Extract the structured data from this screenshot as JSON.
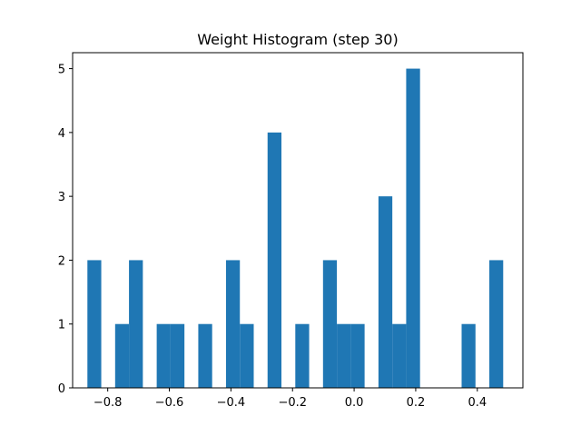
{
  "chart_data": {
    "type": "bar",
    "title": "Weight Histogram (step 30)",
    "xlabel": "",
    "ylabel": "",
    "xlim": [
      -0.914,
      0.548
    ],
    "ylim": [
      0,
      5.25
    ],
    "bar_color": "#1f77b4",
    "bin_width": 0.045,
    "bins": [
      {
        "left": -0.866,
        "count": 2
      },
      {
        "left": -0.821,
        "count": 0
      },
      {
        "left": -0.776,
        "count": 1
      },
      {
        "left": -0.731,
        "count": 2
      },
      {
        "left": -0.686,
        "count": 0
      },
      {
        "left": -0.641,
        "count": 1
      },
      {
        "left": -0.596,
        "count": 1
      },
      {
        "left": -0.551,
        "count": 0
      },
      {
        "left": -0.506,
        "count": 1
      },
      {
        "left": -0.461,
        "count": 0
      },
      {
        "left": -0.416,
        "count": 2
      },
      {
        "left": -0.371,
        "count": 1
      },
      {
        "left": -0.326,
        "count": 0
      },
      {
        "left": -0.281,
        "count": 4
      },
      {
        "left": -0.236,
        "count": 0
      },
      {
        "left": -0.191,
        "count": 1
      },
      {
        "left": -0.146,
        "count": 0
      },
      {
        "left": -0.101,
        "count": 2
      },
      {
        "left": -0.056,
        "count": 1
      },
      {
        "left": -0.011,
        "count": 1
      },
      {
        "left": 0.034,
        "count": 0
      },
      {
        "left": 0.079,
        "count": 3
      },
      {
        "left": 0.124,
        "count": 1
      },
      {
        "left": 0.169,
        "count": 5
      },
      {
        "left": 0.214,
        "count": 0
      },
      {
        "left": 0.259,
        "count": 0
      },
      {
        "left": 0.304,
        "count": 0
      },
      {
        "left": 0.349,
        "count": 1
      },
      {
        "left": 0.394,
        "count": 0
      },
      {
        "left": 0.439,
        "count": 2
      }
    ],
    "x_ticks": [
      {
        "value": -0.8,
        "label": "−0.8"
      },
      {
        "value": -0.6,
        "label": "−0.6"
      },
      {
        "value": -0.4,
        "label": "−0.4"
      },
      {
        "value": -0.2,
        "label": "−0.2"
      },
      {
        "value": 0.0,
        "label": "0.0"
      },
      {
        "value": 0.2,
        "label": "0.2"
      },
      {
        "value": 0.4,
        "label": "0.4"
      }
    ],
    "y_ticks": [
      {
        "value": 0,
        "label": "0"
      },
      {
        "value": 1,
        "label": "1"
      },
      {
        "value": 2,
        "label": "2"
      },
      {
        "value": 3,
        "label": "3"
      },
      {
        "value": 4,
        "label": "4"
      },
      {
        "value": 5,
        "label": "5"
      }
    ],
    "grid": false,
    "legend": "none"
  }
}
